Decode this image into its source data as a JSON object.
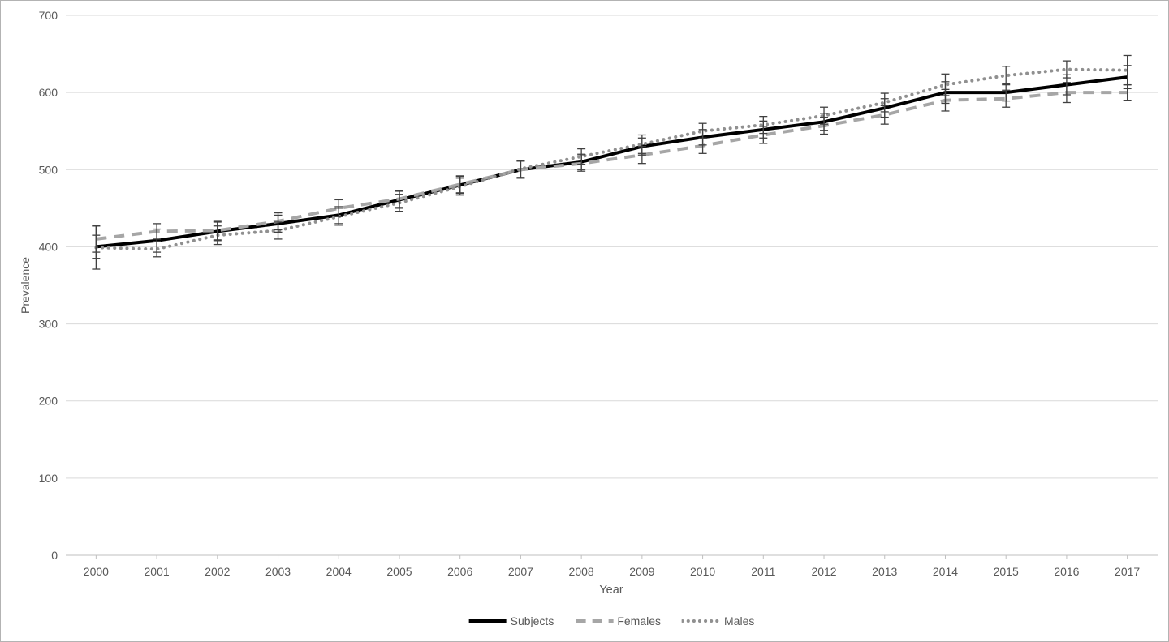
{
  "chart_data": {
    "type": "line",
    "title": "",
    "xlabel": "Year",
    "ylabel": "Prevalence",
    "x": [
      "2000",
      "2001",
      "2002",
      "2003",
      "2004",
      "2005",
      "2006",
      "2007",
      "2008",
      "2009",
      "2010",
      "2011",
      "2012",
      "2013",
      "2014",
      "2015",
      "2016",
      "2017"
    ],
    "ylim": [
      0,
      700
    ],
    "yticks": [
      0,
      100,
      200,
      300,
      400,
      500,
      600,
      700
    ],
    "grid": "horizontal",
    "legend_position": "bottom-center",
    "error_bars": true,
    "series": [
      {
        "name": "Subjects",
        "style": "solid",
        "color": "#000000",
        "width": 4,
        "values": [
          400,
          408,
          420,
          430,
          441,
          461,
          480,
          500,
          510,
          530,
          542,
          552,
          562,
          580,
          600,
          600,
          610,
          620
        ],
        "err": [
          15,
          15,
          12,
          11,
          11,
          11,
          11,
          11,
          10,
          11,
          10,
          11,
          11,
          12,
          14,
          11,
          13,
          15
        ]
      },
      {
        "name": "Females",
        "style": "dashed",
        "color": "#a6a6a6",
        "width": 4,
        "values": [
          410,
          420,
          421,
          433,
          450,
          462,
          481,
          500,
          508,
          519,
          531,
          545,
          557,
          571,
          590,
          592,
          600,
          600
        ],
        "err": [
          17,
          10,
          12,
          11,
          11,
          11,
          11,
          11,
          10,
          11,
          10,
          11,
          11,
          12,
          14,
          11,
          13,
          10
        ]
      },
      {
        "name": "Males",
        "style": "dotted",
        "color": "#909090",
        "width": 4,
        "values": [
          399,
          397,
          415,
          421,
          439,
          457,
          478,
          501,
          517,
          533,
          550,
          558,
          570,
          587,
          610,
          622,
          630,
          629
        ],
        "err": [
          28,
          10,
          12,
          11,
          11,
          11,
          11,
          11,
          10,
          12,
          10,
          11,
          11,
          12,
          14,
          12,
          11,
          19
        ]
      }
    ],
    "colors": {
      "grid": "#d9d9d9",
      "axis": "#bfbfbf",
      "text": "#595959",
      "error": "#404040"
    }
  }
}
